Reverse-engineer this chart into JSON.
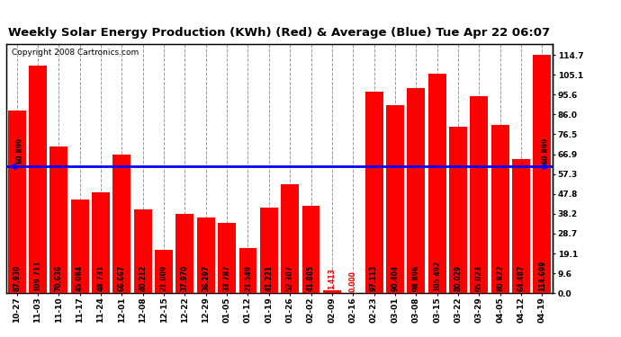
{
  "title": "Weekly Solar Energy Production (KWh) (Red) & Average (Blue) Tue Apr 22 06:07",
  "copyright": "Copyright 2008 Cartronics.com",
  "average": 60.899,
  "categories": [
    "10-27",
    "11-03",
    "11-10",
    "11-17",
    "11-24",
    "12-01",
    "12-08",
    "12-15",
    "12-22",
    "12-29",
    "01-05",
    "01-12",
    "01-19",
    "01-26",
    "02-02",
    "02-09",
    "02-16",
    "02-23",
    "03-01",
    "03-08",
    "03-15",
    "03-22",
    "03-29",
    "04-05",
    "04-12",
    "04-19"
  ],
  "values": [
    87.93,
    109.711,
    70.636,
    45.084,
    48.731,
    66.667,
    40.212,
    21.009,
    37.97,
    36.297,
    33.787,
    21.549,
    41.221,
    52.307,
    41.885,
    1.413,
    0.0,
    97.113,
    90.404,
    98.896,
    105.492,
    80.029,
    95.023,
    80.822,
    64.487,
    114.699
  ],
  "yticks": [
    0.0,
    9.6,
    19.1,
    28.7,
    38.2,
    47.8,
    57.3,
    66.9,
    76.5,
    86.0,
    95.6,
    105.1,
    114.7
  ],
  "ymax": 120,
  "bar_color": "#FF0000",
  "avg_line_color": "#0000FF",
  "bg_color": "#FFFFFF",
  "plot_bg_color": "#FFFFFF",
  "grid_color": "#999999",
  "title_fontsize": 9.5,
  "copyright_fontsize": 6.5,
  "tick_fontsize": 6.5,
  "value_fontsize": 5.5
}
